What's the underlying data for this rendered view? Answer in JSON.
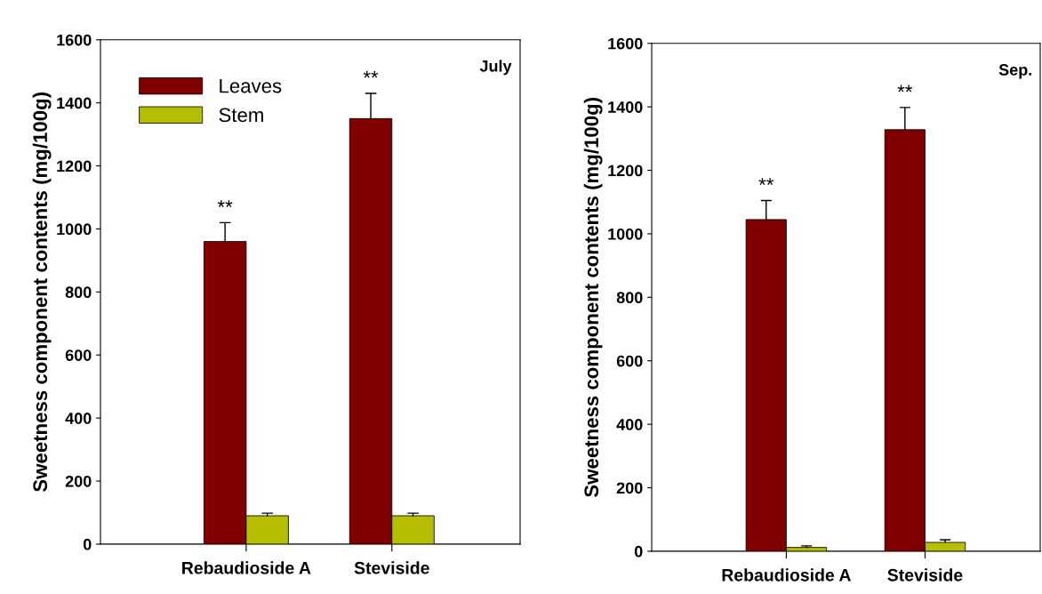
{
  "chart_data": [
    {
      "type": "bar",
      "ylabel": "Sweetness component contents (mg/100g)",
      "categories": [
        "Rebaudioside A",
        "Steviside"
      ],
      "series": [
        {
          "name": "Leaves",
          "color": "#800000",
          "values": [
            960,
            1350
          ],
          "errors": [
            60,
            80
          ]
        },
        {
          "name": "Stem",
          "color": "#b5bf00",
          "values": [
            90,
            90
          ],
          "errors": [
            8,
            8
          ]
        }
      ],
      "ylim": [
        0,
        1600
      ],
      "yticks": [
        0,
        200,
        400,
        600,
        800,
        1000,
        1200,
        1400,
        1600
      ],
      "legend": "top left",
      "grid": false,
      "annotations": [
        "July",
        {
          "text": "**",
          "x": "Rebaudioside A",
          "y": 960
        },
        {
          "text": "**",
          "x": "Steviside",
          "y": 1350
        }
      ]
    },
    {
      "type": "bar",
      "ylabel": "Sweetness component contents (mg/100g)",
      "categories": [
        "Rebaudioside A",
        "Steviside"
      ],
      "series": [
        {
          "color": "#800000",
          "values": [
            1045,
            1328
          ],
          "errors": [
            60,
            70
          ]
        },
        {
          "color": "#b5bf00",
          "values": [
            12,
            28
          ],
          "errors": [
            5,
            8
          ]
        }
      ],
      "ylim": [
        0,
        1600
      ],
      "yticks": [
        0,
        200,
        400,
        600,
        800,
        1000,
        1200,
        1400,
        1600
      ],
      "legend": false,
      "grid": false,
      "annotations": [
        "Sep.",
        {
          "text": "**",
          "x": "Rebaudioside A",
          "y": 1045
        },
        {
          "text": "**",
          "x": "Steviside",
          "y": 1328
        }
      ]
    }
  ]
}
